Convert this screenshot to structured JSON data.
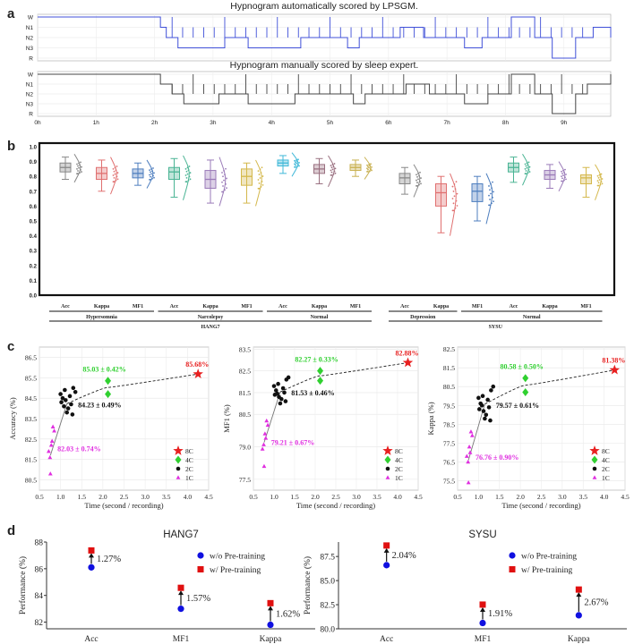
{
  "panel_a": {
    "label": "a",
    "auto_title": "Hypnogram automatically scored by LPSGM.",
    "manual_title": "Hypnogram manually scored by sleep expert.",
    "stages": [
      "W",
      "N1",
      "N2",
      "N3",
      "R"
    ],
    "time_ticks": [
      "0h",
      "1h",
      "2h",
      "3h",
      "4h",
      "5h",
      "6h",
      "7h",
      "8h",
      "9h"
    ],
    "auto_color": "#4050d8",
    "manual_color": "#444444"
  },
  "panel_b": {
    "label": "b",
    "group_ticks": [
      "Acc",
      "Kappa",
      "MF1",
      "Acc",
      "Kappa",
      "MF1",
      "Acc",
      "Kappa",
      "MF1",
      "Acc",
      "Kappa",
      "MF1",
      "Acc",
      "Kappa",
      "MF1"
    ],
    "subgroups": [
      "Hypersomnia",
      "Narcolepsy",
      "Normal",
      "Depression",
      "Normal"
    ],
    "datasets": [
      "HANG7",
      "SYSU"
    ]
  },
  "panel_c": {
    "label": "c",
    "legend": [
      "8C",
      "4C",
      "2C",
      "1C"
    ],
    "xlabel": "Time (second / recording)",
    "colors": {
      "8C": "#e82020",
      "4C": "#30d030",
      "2C": "#111111",
      "1C": "#e030e0"
    }
  },
  "panel_d": {
    "label": "d",
    "ylabel": "Performance (%)",
    "legend": [
      "w/o Pre-training",
      "w/ Pre-training"
    ],
    "colors": {
      "without": "#1010e0",
      "with": "#e01010"
    }
  },
  "chart_data": [
    {
      "type": "line",
      "title": "Hypnogram automatically scored by LPSGM.",
      "xlabel": "",
      "ylabel": "",
      "yticks": [
        "W",
        "N1",
        "N2",
        "N3",
        "R"
      ],
      "xticks": [
        "0h",
        "1h",
        "2h",
        "3h",
        "4h",
        "5h",
        "6h",
        "7h",
        "8h",
        "9h"
      ],
      "xlim": [
        0,
        9.8
      ],
      "series": [
        {
          "values": [
            [
              0,
              0
            ],
            [
              2.1,
              0
            ],
            [
              2.1,
              1
            ],
            [
              2.2,
              2
            ],
            [
              2.4,
              3
            ],
            [
              3.1,
              3
            ],
            [
              3.2,
              2
            ],
            [
              3.6,
              3
            ],
            [
              4.4,
              3
            ],
            [
              4.5,
              2
            ],
            [
              5.2,
              2
            ],
            [
              5.3,
              3
            ],
            [
              5.5,
              2
            ],
            [
              6.1,
              2
            ],
            [
              6.2,
              1
            ],
            [
              6.6,
              2
            ],
            [
              7.2,
              2
            ],
            [
              7.3,
              3
            ],
            [
              7.6,
              2
            ],
            [
              8.0,
              2
            ],
            [
              8.1,
              0
            ],
            [
              8.5,
              2
            ],
            [
              8.8,
              4
            ],
            [
              9.2,
              2
            ],
            [
              9.5,
              1
            ],
            [
              9.8,
              2
            ]
          ]
        }
      ]
    },
    {
      "type": "line",
      "title": "Hypnogram manually scored by sleep expert.",
      "xlabel": "",
      "ylabel": "",
      "yticks": [
        "W",
        "N1",
        "N2",
        "N3",
        "R"
      ],
      "xticks": [
        "0h",
        "1h",
        "2h",
        "3h",
        "4h",
        "5h",
        "6h",
        "7h",
        "8h",
        "9h"
      ],
      "xlim": [
        0,
        9.8
      ],
      "series": [
        {
          "values": [
            [
              0,
              0
            ],
            [
              2.1,
              0
            ],
            [
              2.1,
              1
            ],
            [
              2.3,
              2
            ],
            [
              2.5,
              3
            ],
            [
              3.0,
              3
            ],
            [
              3.1,
              2
            ],
            [
              3.6,
              3
            ],
            [
              4.3,
              3
            ],
            [
              4.4,
              2
            ],
            [
              5.3,
              2
            ],
            [
              5.4,
              3
            ],
            [
              5.6,
              2
            ],
            [
              6.2,
              2
            ],
            [
              6.3,
              1
            ],
            [
              6.7,
              2
            ],
            [
              7.2,
              2
            ],
            [
              7.3,
              3
            ],
            [
              7.7,
              2
            ],
            [
              8.0,
              2
            ],
            [
              8.1,
              0
            ],
            [
              8.5,
              2
            ],
            [
              8.8,
              4
            ],
            [
              9.2,
              2
            ],
            [
              9.4,
              1
            ],
            [
              9.8,
              0
            ]
          ]
        }
      ]
    },
    {
      "type": "box",
      "ylim": [
        0,
        1.0
      ],
      "yticks": [
        0.0,
        0.1,
        0.2,
        0.3,
        0.4,
        0.5,
        0.6,
        0.7,
        0.8,
        0.9,
        1.0
      ],
      "categories": [
        "Acc",
        "Kappa",
        "MF1",
        "Acc",
        "Kappa",
        "MF1",
        "Acc",
        "Kappa",
        "MF1",
        "Acc",
        "Kappa",
        "MF1",
        "Acc",
        "Kappa",
        "MF1"
      ],
      "groups": [
        "Hypersomnia",
        "Narcolepsy",
        "Normal",
        "Depression",
        "Normal"
      ],
      "datasets": [
        "HANG7",
        "SYSU"
      ],
      "boxes": [
        {
          "median": 0.86,
          "q1": 0.83,
          "q3": 0.89,
          "min": 0.78,
          "max": 0.93,
          "color": "#888888"
        },
        {
          "median": 0.82,
          "q1": 0.78,
          "q3": 0.86,
          "min": 0.7,
          "max": 0.91,
          "color": "#e07070"
        },
        {
          "median": 0.82,
          "q1": 0.79,
          "q3": 0.85,
          "min": 0.74,
          "max": 0.89,
          "color": "#4f7fbf"
        },
        {
          "median": 0.83,
          "q1": 0.78,
          "q3": 0.86,
          "min": 0.66,
          "max": 0.92,
          "color": "#4ab494"
        },
        {
          "median": 0.78,
          "q1": 0.72,
          "q3": 0.84,
          "min": 0.62,
          "max": 0.91,
          "color": "#9a7ab8"
        },
        {
          "median": 0.8,
          "q1": 0.74,
          "q3": 0.85,
          "min": 0.62,
          "max": 0.89,
          "color": "#d4b84c"
        },
        {
          "median": 0.89,
          "q1": 0.87,
          "q3": 0.91,
          "min": 0.82,
          "max": 0.94,
          "color": "#40b8d8"
        },
        {
          "median": 0.85,
          "q1": 0.82,
          "q3": 0.88,
          "min": 0.75,
          "max": 0.92,
          "color": "#9a7080"
        },
        {
          "median": 0.86,
          "q1": 0.84,
          "q3": 0.88,
          "min": 0.8,
          "max": 0.91,
          "color": "#c8b050"
        },
        {
          "median": 0.79,
          "q1": 0.75,
          "q3": 0.82,
          "min": 0.68,
          "max": 0.86,
          "color": "#888888"
        },
        {
          "median": 0.69,
          "q1": 0.6,
          "q3": 0.75,
          "min": 0.42,
          "max": 0.8,
          "color": "#e07070"
        },
        {
          "median": 0.7,
          "q1": 0.63,
          "q3": 0.75,
          "min": 0.5,
          "max": 0.8,
          "color": "#4f7fbf"
        },
        {
          "median": 0.86,
          "q1": 0.83,
          "q3": 0.89,
          "min": 0.76,
          "max": 0.93,
          "color": "#4ab494"
        },
        {
          "median": 0.81,
          "q1": 0.78,
          "q3": 0.84,
          "min": 0.72,
          "max": 0.88,
          "color": "#9a7ab8"
        },
        {
          "median": 0.79,
          "q1": 0.75,
          "q3": 0.81,
          "min": 0.66,
          "max": 0.86,
          "color": "#d4b84c"
        }
      ]
    },
    {
      "type": "scatter",
      "xlabel": "Time (second / recording)",
      "ylabel": "Accuracy (%)",
      "xlim": [
        0.5,
        4.5
      ],
      "ylim": [
        80.0,
        87.0
      ],
      "xticks": [
        0.5,
        1.0,
        1.5,
        2.0,
        2.5,
        3.0,
        3.5,
        4.0,
        4.5
      ],
      "yticks": [
        80.5,
        81.5,
        82.5,
        83.5,
        84.5,
        85.5,
        86.5
      ],
      "series": [
        {
          "name": "8C",
          "points": [
            [
              4.25,
              85.68
            ]
          ]
        },
        {
          "name": "4C",
          "points": [
            [
              2.12,
              85.35
            ],
            [
              2.12,
              84.7
            ]
          ]
        },
        {
          "name": "2C",
          "points": [
            [
              1.02,
              84.3
            ],
            [
              1.1,
              84.9
            ],
            [
              1.18,
              84.0
            ],
            [
              1.22,
              84.6
            ],
            [
              1.05,
              84.5
            ],
            [
              1.3,
              85.0
            ],
            [
              1.15,
              83.8
            ],
            [
              1.25,
              84.2
            ],
            [
              1.0,
              84.7
            ],
            [
              1.12,
              84.4
            ],
            [
              1.28,
              83.7
            ],
            [
              1.35,
              84.8
            ],
            [
              1.08,
              84.1
            ]
          ]
        },
        {
          "name": "1C",
          "points": [
            [
              0.75,
              81.6
            ],
            [
              0.78,
              82.2
            ],
            [
              0.82,
              83.1
            ],
            [
              0.8,
              82.4
            ],
            [
              0.76,
              80.8
            ],
            [
              0.85,
              82.9
            ],
            [
              0.72,
              81.9
            ]
          ]
        }
      ],
      "annotations": [
        {
          "text": "85.68%",
          "x": 4.25,
          "y": 85.68,
          "color": "#e82020"
        },
        {
          "text": "85.03 ± 0.42%",
          "x": 2.12,
          "y": 85.35,
          "color": "#30d030"
        },
        {
          "text": "84.23 ± 0.49%",
          "x": 1.2,
          "y": 84.23,
          "color": "#111111"
        },
        {
          "text": "82.03 ± 0.74%",
          "x": 0.8,
          "y": 82.03,
          "color": "#e030e0"
        }
      ]
    },
    {
      "type": "scatter",
      "xlabel": "Time (second / recording)",
      "ylabel": "MF1 (%)",
      "xlim": [
        0.5,
        4.5
      ],
      "ylim": [
        77.0,
        83.6
      ],
      "xticks": [
        0.5,
        1.0,
        1.5,
        2.0,
        2.5,
        3.0,
        3.5,
        4.0,
        4.5
      ],
      "yticks": [
        77.5,
        79.0,
        80.5,
        81.5,
        82.5,
        83.5
      ],
      "series": [
        {
          "name": "8C",
          "points": [
            [
              4.25,
              82.88
            ]
          ]
        },
        {
          "name": "4C",
          "points": [
            [
              2.12,
              82.5
            ],
            [
              2.12,
              82.05
            ]
          ]
        },
        {
          "name": "2C",
          "points": [
            [
              1.02,
              81.4
            ],
            [
              1.1,
              81.9
            ],
            [
              1.18,
              81.2
            ],
            [
              1.22,
              81.7
            ],
            [
              1.05,
              81.6
            ],
            [
              1.3,
              82.1
            ],
            [
              1.15,
              81.0
            ],
            [
              1.25,
              81.5
            ],
            [
              1.0,
              81.8
            ],
            [
              1.12,
              81.3
            ],
            [
              1.28,
              81.1
            ],
            [
              1.35,
              82.2
            ],
            [
              1.08,
              81.45
            ]
          ]
        },
        {
          "name": "1C",
          "points": [
            [
              0.75,
              79.1
            ],
            [
              0.78,
              79.6
            ],
            [
              0.82,
              80.2
            ],
            [
              0.8,
              79.4
            ],
            [
              0.76,
              78.1
            ],
            [
              0.85,
              80.0
            ],
            [
              0.72,
              78.9
            ]
          ]
        }
      ],
      "annotations": [
        {
          "text": "82.88%",
          "x": 4.25,
          "y": 82.88,
          "color": "#e82020"
        },
        {
          "text": "82.27 ± 0.33%",
          "x": 2.12,
          "y": 82.5,
          "color": "#30d030"
        },
        {
          "text": "81.53 ± 0.46%",
          "x": 1.2,
          "y": 81.53,
          "color": "#111111"
        },
        {
          "text": "79.21 ± 0.67%",
          "x": 0.8,
          "y": 79.21,
          "color": "#e030e0"
        }
      ]
    },
    {
      "type": "scatter",
      "xlabel": "Time (second / recording)",
      "ylabel": "Kappa (%)",
      "xlim": [
        0.5,
        4.5
      ],
      "ylim": [
        75.0,
        82.6
      ],
      "xticks": [
        0.5,
        1.0,
        1.5,
        2.0,
        2.5,
        3.0,
        3.5,
        4.0,
        4.5
      ],
      "yticks": [
        75.5,
        76.5,
        77.5,
        78.5,
        79.5,
        80.5,
        81.5,
        82.5
      ],
      "series": [
        {
          "name": "8C",
          "points": [
            [
              4.25,
              81.38
            ]
          ]
        },
        {
          "name": "4C",
          "points": [
            [
              2.12,
              80.95
            ],
            [
              2.12,
              80.2
            ]
          ]
        },
        {
          "name": "2C",
          "points": [
            [
              1.02,
              79.3
            ],
            [
              1.1,
              80.0
            ],
            [
              1.18,
              79.0
            ],
            [
              1.22,
              79.8
            ],
            [
              1.05,
              79.6
            ],
            [
              1.3,
              80.3
            ],
            [
              1.15,
              78.8
            ],
            [
              1.25,
              79.4
            ],
            [
              1.0,
              79.9
            ],
            [
              1.12,
              79.2
            ],
            [
              1.28,
              78.7
            ],
            [
              1.35,
              80.5
            ],
            [
              1.08,
              79.5
            ]
          ]
        },
        {
          "name": "1C",
          "points": [
            [
              0.75,
              76.5
            ],
            [
              0.78,
              77.3
            ],
            [
              0.82,
              78.1
            ],
            [
              0.8,
              77.0
            ],
            [
              0.76,
              75.4
            ],
            [
              0.85,
              77.9
            ],
            [
              0.72,
              76.8
            ]
          ]
        }
      ],
      "annotations": [
        {
          "text": "81.38%",
          "x": 4.25,
          "y": 81.38,
          "color": "#e82020"
        },
        {
          "text": "80.58 ± 0.50%",
          "x": 2.12,
          "y": 80.95,
          "color": "#30d030"
        },
        {
          "text": "79.57 ± 0.61%",
          "x": 1.2,
          "y": 79.57,
          "color": "#111111"
        },
        {
          "text": "76.76 ± 0.90%",
          "x": 0.8,
          "y": 76.76,
          "color": "#e030e0"
        }
      ]
    },
    {
      "type": "scatter",
      "title": "HANG7",
      "ylabel": "Performance (%)",
      "categories": [
        "Acc",
        "MF1",
        "Kappa"
      ],
      "ylim": [
        81.5,
        88.0
      ],
      "yticks": [
        82,
        84,
        86,
        88
      ],
      "series": [
        {
          "name": "w/o Pre-training",
          "values": [
            86.1,
            83.0,
            81.8
          ]
        },
        {
          "name": "w/ Pre-training",
          "values": [
            87.37,
            84.57,
            83.42
          ]
        }
      ],
      "annotations": [
        "1.27%",
        "1.57%",
        "1.62%"
      ]
    },
    {
      "type": "scatter",
      "title": "SYSU",
      "ylabel": "Performance (%)",
      "categories": [
        "Acc",
        "MF1",
        "Kappa"
      ],
      "ylim": [
        80.0,
        89.0
      ],
      "yticks": [
        80.0,
        82.5,
        85.0,
        87.5
      ],
      "series": [
        {
          "name": "w/o Pre-training",
          "values": [
            86.6,
            80.6,
            81.4
          ]
        },
        {
          "name": "w/ Pre-training",
          "values": [
            88.64,
            82.51,
            84.07
          ]
        }
      ],
      "annotations": [
        "2.04%",
        "1.91%",
        "2.67%"
      ]
    }
  ]
}
